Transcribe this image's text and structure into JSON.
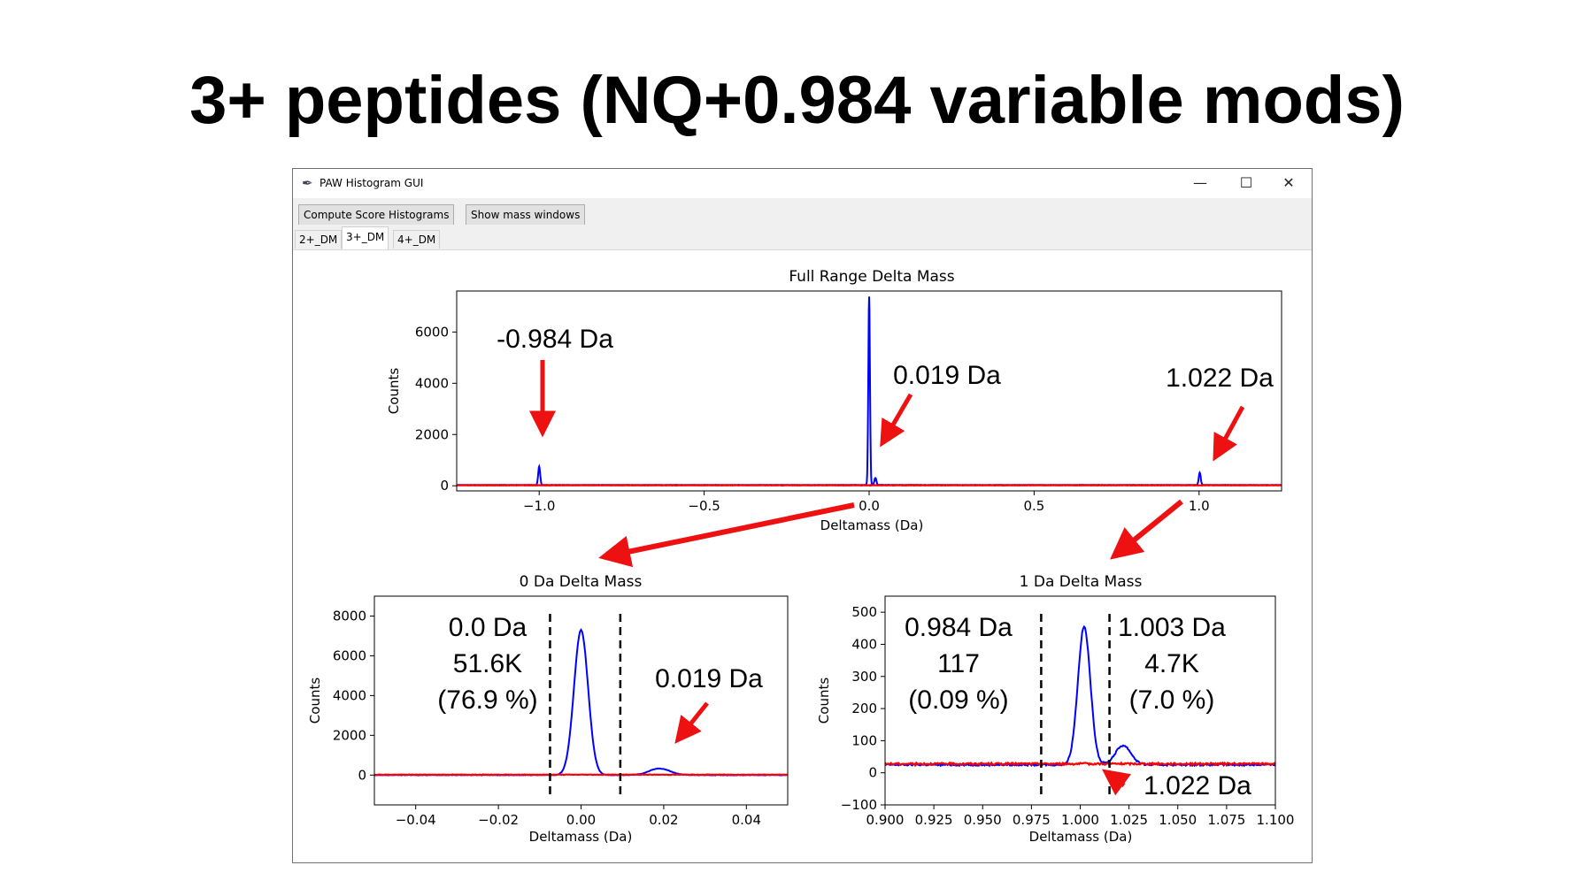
{
  "slide": {
    "title": "3+ peptides (NQ+0.984 variable mods)"
  },
  "window": {
    "title": "PAW Histogram GUI",
    "minimize": "—",
    "maximize": "☐",
    "close": "✕"
  },
  "toolbar": {
    "compute_label": "Compute Score Histograms",
    "mass_windows_label": "Show mass windows"
  },
  "tabs": [
    {
      "label": "2+_DM",
      "active": false
    },
    {
      "label": "3+_DM",
      "active": true
    },
    {
      "label": "4+_DM",
      "active": false
    }
  ],
  "colors": {
    "target": "#0000ff",
    "decoy": "#ff0000",
    "annotation_arrow": "#ee1111"
  },
  "chart_data": [
    {
      "id": "full",
      "type": "line",
      "title": "Full Range Delta Mass",
      "xlabel": "Deltamass (Da)",
      "ylabel": "Counts",
      "xlim": [
        -1.25,
        1.25
      ],
      "ylim": [
        -200,
        7600
      ],
      "xticks": [
        -1.0,
        -0.5,
        0.0,
        0.5,
        1.0
      ],
      "xtick_labels": [
        "−1.0",
        "−0.5",
        "0.0",
        "0.5",
        "1.0"
      ],
      "yticks": [
        0,
        2000,
        4000,
        6000
      ],
      "ytick_labels": [
        "0",
        "2000",
        "4000",
        "6000"
      ],
      "series": [
        {
          "color": "#0000ff",
          "baseline": 30,
          "peaks": [
            {
              "x": -1.0,
              "h": 720,
              "w": 0.003
            },
            {
              "x": 0.0,
              "h": 7350,
              "w": 0.0025
            },
            {
              "x": 0.019,
              "h": 280,
              "w": 0.003
            },
            {
              "x": 1.002,
              "h": 480,
              "w": 0.003
            }
          ]
        },
        {
          "color": "#ff0000",
          "baseline": 20,
          "peaks": []
        }
      ],
      "annotations": [
        {
          "text": "-0.984 Da"
        },
        {
          "text": "0.019 Da"
        },
        {
          "text": "1.022 Da"
        }
      ]
    },
    {
      "id": "zero",
      "type": "line",
      "title": "0 Da Delta Mass",
      "xlabel": "Deltamass (Da)",
      "ylabel": "Counts",
      "xlim": [
        -0.05,
        0.05
      ],
      "ylim": [
        -1500,
        9000
      ],
      "xticks": [
        -0.04,
        -0.02,
        0.0,
        0.02,
        0.04
      ],
      "xtick_labels": [
        "−0.04",
        "−0.02",
        "0.00",
        "0.02",
        "0.04"
      ],
      "yticks": [
        0,
        2000,
        4000,
        6000,
        8000
      ],
      "ytick_labels": [
        "0",
        "2000",
        "4000",
        "6000",
        "8000"
      ],
      "vlines": [
        -0.0075,
        0.0095
      ],
      "series": [
        {
          "color": "#0000ff",
          "baseline": 0,
          "peaks": [
            {
              "x": 0.0,
              "h": 7300,
              "w": 0.0017
            },
            {
              "x": 0.019,
              "h": 330,
              "w": 0.0025
            }
          ]
        },
        {
          "color": "#ff0000",
          "baseline": 20,
          "peaks": []
        }
      ],
      "annotations": [
        {
          "lines": [
            "0.0 Da",
            "51.6K",
            "(76.9 %)"
          ]
        },
        {
          "text": "0.019 Da"
        }
      ]
    },
    {
      "id": "one",
      "type": "line",
      "title": "1 Da Delta Mass",
      "xlabel": "Deltamass (Da)",
      "ylabel": "Counts",
      "xlim": [
        0.9,
        1.1
      ],
      "ylim": [
        -100,
        550
      ],
      "xticks": [
        0.9,
        0.925,
        0.95,
        0.975,
        1.0,
        1.025,
        1.05,
        1.075,
        1.1
      ],
      "xtick_labels": [
        "0.900",
        "0.925",
        "0.950",
        "0.975",
        "1.000",
        "1.025",
        "1.050",
        "1.075",
        "1.100"
      ],
      "yticks": [
        -100,
        0,
        100,
        200,
        300,
        400,
        500
      ],
      "ytick_labels": [
        "−100",
        "0",
        "100",
        "200",
        "300",
        "400",
        "500"
      ],
      "vlines": [
        0.98,
        1.015
      ],
      "series": [
        {
          "color": "#0000ff",
          "baseline": 25,
          "peaks": [
            {
              "x": 1.002,
              "h": 430,
              "w": 0.0032
            },
            {
              "x": 1.022,
              "h": 60,
              "w": 0.004
            }
          ]
        },
        {
          "color": "#ff0000",
          "baseline": 28,
          "peaks": []
        }
      ],
      "annotations": [
        {
          "lines": [
            "0.984 Da",
            "117",
            "(0.09 %)"
          ]
        },
        {
          "lines": [
            "1.003 Da",
            "4.7K",
            "(7.0 %)"
          ]
        },
        {
          "text": "1.022 Da"
        }
      ]
    }
  ]
}
